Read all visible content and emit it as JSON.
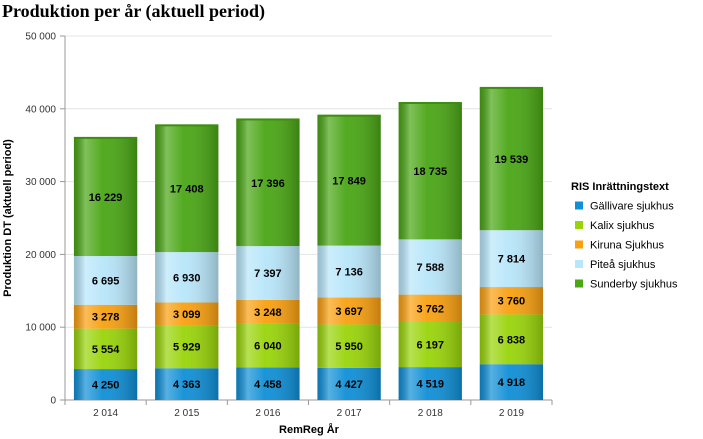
{
  "chart_data": {
    "type": "bar",
    "stacked": true,
    "title": "Produktion per år (aktuell period)",
    "xlabel": "RemReg År",
    "ylabel": "Produktion DT (aktuell period)",
    "ylim": [
      0,
      50000
    ],
    "yticks": [
      "0",
      "10 000",
      "20 000",
      "30 000",
      "40 000",
      "50 000"
    ],
    "categories": [
      "2 014",
      "2 015",
      "2 016",
      "2 017",
      "2 018",
      "2 019"
    ],
    "legend_title": "RIS Inrättningstext",
    "legend_position": "right",
    "grid": true,
    "series": [
      {
        "name": "Gällivare sjukhus",
        "color": "#0f8fd6",
        "values": [
          4250,
          4363,
          4458,
          4427,
          4519,
          4918
        ],
        "labels": [
          "4 250",
          "4 363",
          "4 458",
          "4 427",
          "4 519",
          "4 918"
        ]
      },
      {
        "name": "Kalix sjukhus",
        "color": "#99d40a",
        "values": [
          5554,
          5929,
          6040,
          5950,
          6197,
          6838
        ],
        "labels": [
          "5 554",
          "5 929",
          "6 040",
          "5 950",
          "6 197",
          "6 838"
        ]
      },
      {
        "name": "Kiruna Sjukhus",
        "color": "#f9a011",
        "values": [
          3278,
          3099,
          3248,
          3697,
          3762,
          3760
        ],
        "labels": [
          "3 278",
          "3 099",
          "3 248",
          "3 697",
          "3 762",
          "3 760"
        ]
      },
      {
        "name": "Piteå sjukhus",
        "color": "#b8e6fa",
        "values": [
          6695,
          6930,
          7397,
          7136,
          7588,
          7814
        ],
        "labels": [
          "6 695",
          "6 930",
          "7 397",
          "7 136",
          "7 588",
          "7 814"
        ]
      },
      {
        "name": "Sunderby sjukhus",
        "color": "#4aa615",
        "values": [
          16229,
          17408,
          17396,
          17849,
          18735,
          19539
        ],
        "labels": [
          "16 229",
          "17 408",
          "17 396",
          "17 849",
          "18 735",
          "19 539"
        ]
      }
    ]
  }
}
